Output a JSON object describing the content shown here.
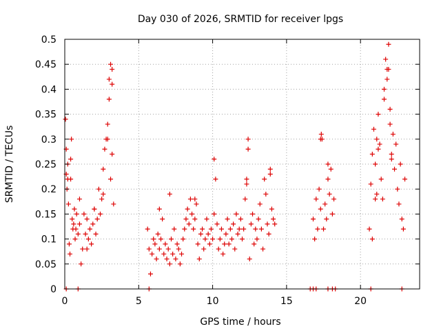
{
  "chart_data": {
    "type": "scatter",
    "title": "Day 030 of 2026, SRMTID for receiver lpgs",
    "xlabel": "GPS time / hours",
    "ylabel": "SRMTID / TECUs",
    "xlim": [
      0,
      24
    ],
    "ylim": [
      0,
      0.5
    ],
    "xticks": [
      0,
      5,
      10,
      15,
      20
    ],
    "xtick_labels": [
      "0",
      "5",
      "10",
      "15",
      "20"
    ],
    "yticks": [
      0,
      0.05,
      0.1,
      0.15,
      0.2,
      0.25,
      0.3,
      0.35,
      0.4,
      0.45,
      0.5
    ],
    "ytick_labels": [
      "0",
      "0.05",
      "0.1",
      "0.15",
      "0.2",
      "0.25",
      "0.3",
      "0.35",
      "0.4",
      "0.45",
      "0.5"
    ],
    "grid": true,
    "marker": "+",
    "colors": {
      "series": "#dd0000",
      "axis": "#000000",
      "grid": "#a0a0a0"
    },
    "series": [
      {
        "name": "SRMTID",
        "x": [
          0.05,
          0.1,
          0.15,
          0.2,
          0.25,
          0.3,
          0.35,
          0.4,
          0.45,
          0.5,
          0.55,
          0.6,
          0.65,
          0.7,
          0.75,
          0.8,
          0.9,
          1.0,
          1.1,
          1.2,
          1.3,
          1.4,
          1.5,
          1.6,
          1.7,
          1.8,
          1.9,
          2.0,
          2.1,
          2.2,
          2.3,
          2.4,
          2.5,
          2.6,
          2.7,
          2.8,
          2.9,
          3.0,
          3.1,
          3.2,
          3.3,
          5.6,
          5.7,
          5.8,
          5.9,
          6.0,
          6.1,
          6.2,
          6.3,
          6.4,
          6.5,
          6.6,
          6.7,
          6.8,
          6.9,
          7.0,
          7.1,
          7.2,
          7.3,
          7.4,
          7.5,
          7.6,
          7.7,
          7.8,
          7.9,
          8.0,
          8.1,
          8.2,
          8.3,
          8.4,
          8.5,
          8.6,
          8.7,
          8.8,
          8.9,
          9.0,
          9.1,
          9.2,
          9.3,
          9.4,
          9.5,
          9.6,
          9.7,
          9.8,
          9.9,
          10.0,
          10.1,
          10.2,
          10.3,
          10.4,
          10.5,
          10.6,
          10.7,
          10.8,
          10.9,
          11.0,
          11.1,
          11.2,
          11.3,
          11.4,
          11.5,
          11.6,
          11.7,
          11.8,
          11.9,
          12.0,
          12.1,
          12.2,
          12.3,
          12.4,
          12.5,
          12.6,
          12.7,
          12.8,
          12.9,
          13.0,
          13.1,
          13.2,
          13.3,
          13.4,
          13.5,
          13.6,
          13.7,
          13.8,
          13.9,
          14.0,
          14.1,
          14.2,
          16.8,
          16.9,
          17.0,
          17.1,
          17.2,
          17.3,
          17.4,
          17.5,
          17.6,
          17.7,
          17.8,
          17.9,
          18.0,
          18.1,
          18.2,
          20.6,
          20.7,
          20.8,
          20.9,
          21.0,
          21.1,
          21.2,
          21.3,
          21.4,
          21.5,
          21.6,
          21.7,
          21.8,
          21.9,
          22.0,
          22.1,
          22.2,
          22.3,
          22.4,
          22.5,
          22.6,
          22.7,
          22.8,
          22.9,
          23.0,
          0.1,
          0.2,
          0.4,
          1.0,
          1.5,
          2.0,
          2.6,
          2.9,
          3.0,
          3.1,
          3.2,
          3.2,
          6.4,
          7.1,
          8.8,
          10.1,
          12.3,
          12.4,
          13.9,
          17.3,
          17.35,
          17.8,
          21.1,
          21.2,
          21.6,
          21.8,
          21.9,
          22.0,
          22.1,
          21.0,
          20.8,
          0.1,
          0.9,
          5.7,
          16.6,
          16.8,
          17.0,
          17.8,
          18.1,
          18.3,
          20.7,
          22.8
        ],
        "y": [
          0.34,
          0.23,
          0.2,
          0.25,
          0.17,
          0.09,
          0.07,
          0.22,
          0.3,
          0.14,
          0.12,
          0.13,
          0.16,
          0.1,
          0.12,
          0.15,
          0.11,
          0.13,
          0.05,
          0.08,
          0.15,
          0.11,
          0.14,
          0.1,
          0.12,
          0.09,
          0.13,
          0.16,
          0.11,
          0.14,
          0.2,
          0.15,
          0.18,
          0.24,
          0.28,
          0.3,
          0.33,
          0.42,
          0.22,
          0.27,
          0.17,
          0.12,
          0.08,
          0.03,
          0.07,
          0.1,
          0.09,
          0.06,
          0.11,
          0.08,
          0.1,
          0.14,
          0.07,
          0.09,
          0.06,
          0.08,
          0.05,
          0.1,
          0.07,
          0.12,
          0.06,
          0.09,
          0.08,
          0.05,
          0.07,
          0.1,
          0.12,
          0.14,
          0.16,
          0.13,
          0.18,
          0.15,
          0.12,
          0.14,
          0.17,
          0.09,
          0.06,
          0.11,
          0.12,
          0.08,
          0.1,
          0.14,
          0.11,
          0.09,
          0.12,
          0.1,
          0.15,
          0.22,
          0.13,
          0.08,
          0.1,
          0.12,
          0.07,
          0.09,
          0.11,
          0.14,
          0.09,
          0.12,
          0.1,
          0.13,
          0.08,
          0.15,
          0.11,
          0.12,
          0.14,
          0.1,
          0.12,
          0.18,
          0.22,
          0.28,
          0.06,
          0.13,
          0.15,
          0.09,
          0.12,
          0.1,
          0.14,
          0.17,
          0.12,
          0.08,
          0.22,
          0.19,
          0.13,
          0.11,
          0.24,
          0.16,
          0.14,
          0.13,
          0.14,
          0.1,
          0.18,
          0.12,
          0.2,
          0.16,
          0.3,
          0.12,
          0.17,
          0.14,
          0.22,
          0.19,
          0.24,
          0.15,
          0.18,
          0.12,
          0.21,
          0.27,
          0.32,
          0.25,
          0.19,
          0.35,
          0.29,
          0.22,
          0.18,
          0.38,
          0.46,
          0.42,
          0.44,
          0.36,
          0.27,
          0.31,
          0.24,
          0.29,
          0.2,
          0.17,
          0.25,
          0.14,
          0.12,
          0.22,
          0.28,
          0.22,
          0.26,
          0.18,
          0.08,
          0.16,
          0.19,
          0.3,
          0.38,
          0.45,
          0.44,
          0.41,
          0.16,
          0.19,
          0.18,
          0.26,
          0.21,
          0.3,
          0.23,
          0.3,
          0.31,
          0.25,
          0.3,
          0.28,
          0.4,
          0.44,
          0.49,
          0.33,
          0.26,
          0.18,
          0.1,
          0,
          0,
          0,
          0,
          0,
          0,
          0,
          0,
          0,
          0,
          0
        ]
      }
    ]
  }
}
